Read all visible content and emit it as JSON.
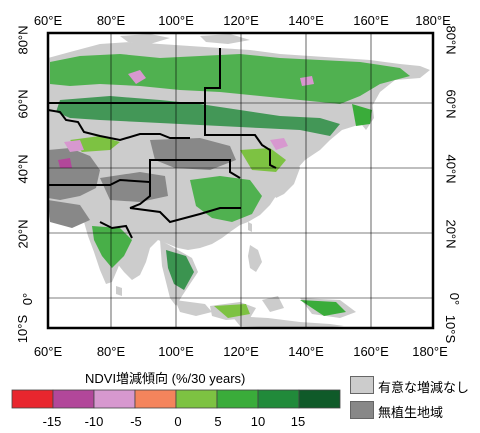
{
  "map": {
    "top_lon_labels": [
      "60°E",
      "80°E",
      "100°E",
      "120°E",
      "140°E",
      "160°E",
      "180°E"
    ],
    "bottom_lon_labels": [
      "60°E",
      "80°E",
      "100°E",
      "120°E",
      "140°E",
      "160°E",
      "180°E"
    ],
    "left_lat_labels": [
      "80°N",
      "60°N",
      "40°N",
      "20°N",
      "0°",
      "10°S"
    ],
    "right_lat_labels": [
      "80°N",
      "60°N",
      "40°N",
      "20°N",
      "0°",
      "10°S"
    ]
  },
  "colorbar": {
    "title": "NDVI増減傾向 (%/30 years)",
    "tick_labels": [
      "-15",
      "-10",
      "-5",
      "0",
      "5",
      "10",
      "15"
    ],
    "colors": [
      "#e8262e",
      "#b2479a",
      "#d798cf",
      "#f4845c",
      "#7dc242",
      "#3aac3a",
      "#218a3a",
      "#0f5a29"
    ]
  },
  "legend": {
    "items": [
      {
        "label": "有意な増減なし",
        "color": "#cccccc"
      },
      {
        "label": "無植生地域",
        "color": "#888888"
      }
    ]
  },
  "colors": {
    "vegetation_green": "#3aac3a",
    "no_trend_gray": "#cccccc",
    "non_vegetated_gray": "#888888",
    "ocean": "#ffffff"
  }
}
